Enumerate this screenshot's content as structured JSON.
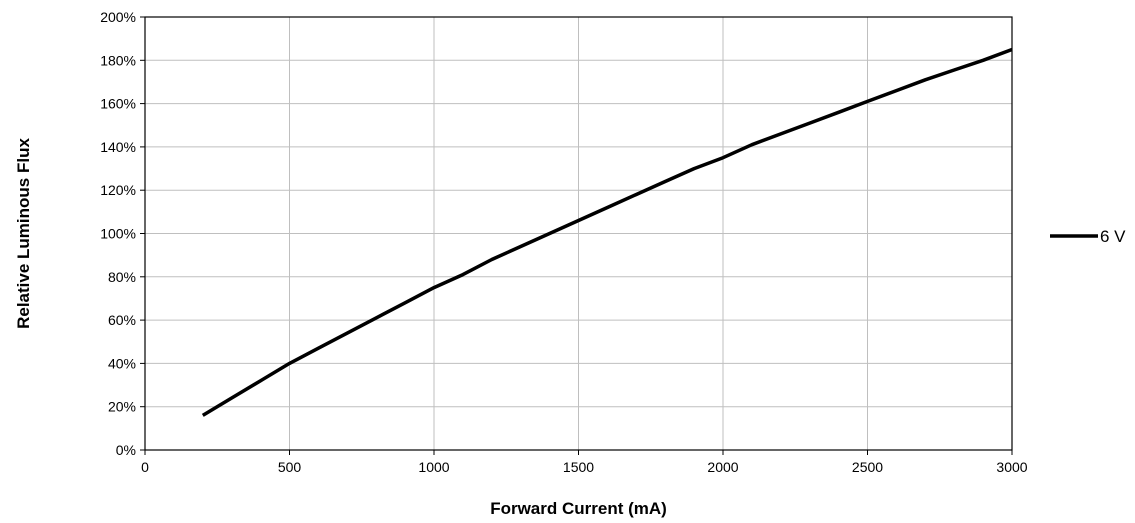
{
  "chart_data": {
    "type": "line",
    "title": "",
    "xlabel": "Forward Current (mA)",
    "ylabel": "Relative Luminous Flux",
    "xlim": [
      0,
      3000
    ],
    "ylim": [
      0,
      200
    ],
    "x_ticks": [
      "0",
      "500",
      "1000",
      "1500",
      "2000",
      "2500",
      "3000"
    ],
    "y_ticks": [
      "0%",
      "20%",
      "40%",
      "60%",
      "80%",
      "100%",
      "120%",
      "140%",
      "160%",
      "180%",
      "200%"
    ],
    "grid": true,
    "legend_position": "right",
    "series": [
      {
        "name": "6 V",
        "color": "#000000",
        "x": [
          200,
          300,
          400,
          500,
          600,
          700,
          800,
          900,
          1000,
          1100,
          1200,
          1300,
          1400,
          1500,
          1600,
          1700,
          1800,
          1900,
          2000,
          2100,
          2200,
          2300,
          2400,
          2500,
          2600,
          2700,
          2800,
          2900,
          3000
        ],
        "y": [
          16,
          24,
          32,
          40,
          47,
          54,
          61,
          68,
          75,
          81,
          88,
          94,
          100,
          106,
          112,
          118,
          124,
          130,
          135,
          141,
          146,
          151,
          156,
          161,
          166,
          171,
          175.5,
          180,
          185
        ]
      }
    ]
  }
}
